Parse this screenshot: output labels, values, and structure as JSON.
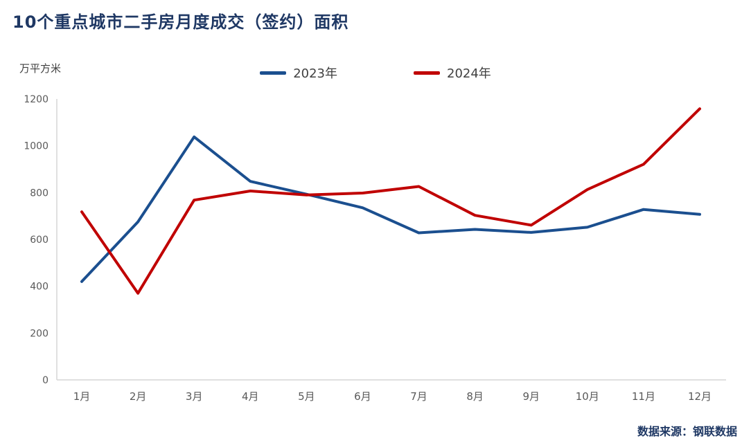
{
  "title": "10个重点城市二手房月度成交（签约）面积",
  "unit_label": "万平方米",
  "source": "数据来源：钢联数据",
  "colors": {
    "title": "#1F3864",
    "series_2023": "#1B4F8F",
    "series_2024": "#C00000",
    "axis_line": "#D6D6D6",
    "tick_text": "#595959"
  },
  "legend": {
    "items": [
      {
        "label": "2023年",
        "color": "#1B4F8F"
      },
      {
        "label": "2024年",
        "color": "#C00000"
      }
    ]
  },
  "chart_data": {
    "type": "line",
    "categories": [
      "1月",
      "2月",
      "3月",
      "4月",
      "5月",
      "6月",
      "7月",
      "8月",
      "9月",
      "10月",
      "11月",
      "12月"
    ],
    "series": [
      {
        "name": "2023年",
        "color": "#1B4F8F",
        "values": [
          420,
          675,
          1038,
          848,
          793,
          735,
          628,
          643,
          630,
          652,
          728,
          707
        ]
      },
      {
        "name": "2024年",
        "color": "#C00000",
        "values": [
          718,
          370,
          768,
          807,
          790,
          798,
          826,
          703,
          661,
          813,
          921,
          1158
        ]
      }
    ],
    "title": "10个重点城市二手房月度成交（签约）面积",
    "xlabel": "",
    "ylabel": "万平方米",
    "ylim": [
      0,
      1200
    ],
    "ytick_step": 200,
    "grid": false,
    "legend_position": "top-center"
  }
}
